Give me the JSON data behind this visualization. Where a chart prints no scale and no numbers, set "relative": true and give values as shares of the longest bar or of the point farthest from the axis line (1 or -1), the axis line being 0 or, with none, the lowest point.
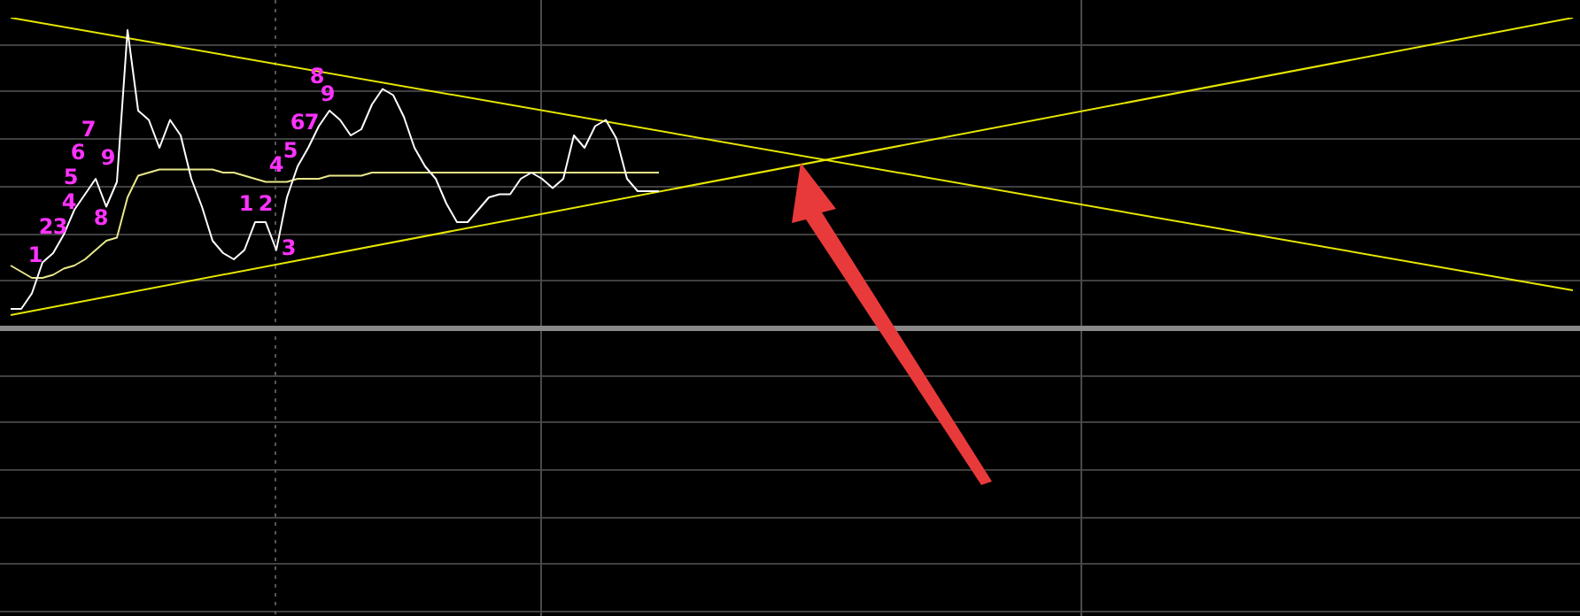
{
  "chart_data": {
    "type": "line",
    "relative": true,
    "legend": false,
    "grid": true,
    "marker": "none",
    "line_style": "solid",
    "categories": [
      null,
      null,
      null,
      null,
      null,
      null,
      null,
      null,
      null,
      null,
      null,
      null,
      null,
      null,
      null,
      null,
      null,
      null,
      null,
      null,
      null,
      null,
      null,
      null,
      null,
      null,
      null,
      null,
      null,
      null,
      null,
      null,
      null,
      null,
      null,
      null,
      null,
      null,
      null,
      null,
      null,
      null,
      null,
      null,
      null,
      null,
      null,
      null,
      null,
      null,
      null,
      null,
      null,
      null,
      null,
      null,
      null,
      null,
      null,
      null,
      null,
      null,
      null,
      null,
      null,
      null,
      null,
      null,
      null,
      null,
      null,
      null,
      null,
      null,
      null,
      null,
      null,
      null,
      null,
      null,
      null,
      null,
      null,
      null,
      null,
      null,
      null,
      null,
      null,
      null,
      null,
      null,
      null,
      null,
      null,
      null,
      null,
      null,
      null,
      null,
      null,
      null,
      null,
      null,
      null,
      null,
      null,
      null,
      null,
      null,
      null,
      null,
      null,
      null,
      null,
      null,
      null,
      null,
      null,
      null,
      null,
      null,
      null,
      null,
      null,
      null,
      null,
      null,
      null,
      null,
      null,
      null,
      null,
      null,
      null,
      null,
      null,
      null,
      null,
      null,
      null,
      null,
      null,
      null,
      null,
      null,
      null,
      null
    ],
    "series": [
      {
        "color": "#ffffff",
        "values": [
          0.06,
          0.06,
          0.11,
          0.21,
          0.24,
          0.3,
          0.38,
          0.43,
          0.48,
          0.39,
          0.47,
          0.96,
          0.7,
          0.67,
          0.58,
          0.67,
          0.62,
          0.48,
          0.39,
          0.28,
          0.24,
          0.22,
          0.25,
          0.34,
          0.34,
          0.25,
          0.42,
          0.52,
          0.58,
          0.65,
          0.7,
          0.67,
          0.62,
          0.64,
          0.72,
          0.77,
          0.75,
          0.68,
          0.58,
          0.52,
          0.48,
          0.4,
          0.34,
          0.34,
          0.38,
          0.42,
          0.43,
          0.43,
          0.48,
          0.5,
          0.48,
          0.45,
          0.48,
          0.62,
          0.58,
          0.65,
          0.67,
          0.61,
          0.48,
          0.44,
          0.44,
          0.44,
          null,
          null,
          null,
          null,
          null,
          null,
          null,
          null,
          null,
          null,
          null,
          null,
          null,
          null,
          null,
          null,
          null,
          null,
          null,
          null,
          null,
          null,
          null,
          null,
          null,
          null,
          null,
          null,
          null,
          null,
          null,
          null,
          null,
          null,
          null,
          null,
          null,
          null,
          null,
          null,
          null,
          null,
          null,
          null,
          null,
          null,
          null,
          null,
          null,
          null,
          null,
          null,
          null,
          null,
          null,
          null,
          null,
          null,
          null,
          null,
          null,
          null,
          null,
          null,
          null,
          null,
          null,
          null,
          null,
          null,
          null,
          null,
          null,
          null,
          null,
          null,
          null,
          null,
          null,
          null,
          null,
          null,
          null,
          null,
          null,
          null
        ]
      },
      {
        "color": "#e8e88a",
        "values": [
          0.2,
          0.18,
          0.16,
          0.16,
          0.17,
          0.19,
          0.2,
          0.22,
          0.25,
          0.28,
          0.29,
          0.42,
          0.49,
          0.5,
          0.51,
          0.51,
          0.51,
          0.51,
          0.51,
          0.51,
          0.5,
          0.5,
          0.49,
          0.48,
          0.47,
          0.47,
          0.47,
          0.48,
          0.48,
          0.48,
          0.49,
          0.49,
          0.49,
          0.49,
          0.5,
          0.5,
          0.5,
          0.5,
          0.5,
          0.5,
          0.5,
          0.5,
          0.5,
          0.5,
          0.5,
          0.5,
          0.5,
          0.5,
          0.5,
          0.5,
          0.5,
          0.5,
          0.5,
          0.5,
          0.5,
          0.5,
          0.5,
          0.5,
          0.5,
          0.5,
          0.5,
          0.5,
          null,
          null,
          null,
          null,
          null,
          null,
          null,
          null,
          null,
          null,
          null,
          null,
          null,
          null,
          null,
          null,
          null,
          null,
          null,
          null,
          null,
          null,
          null,
          null,
          null,
          null,
          null,
          null,
          null,
          null,
          null,
          null,
          null,
          null,
          null,
          null,
          null,
          null,
          null,
          null,
          null,
          null,
          null,
          null,
          null,
          null,
          null,
          null,
          null,
          null,
          null,
          null,
          null,
          null,
          null,
          null,
          null,
          null,
          null,
          null,
          null,
          null,
          null,
          null,
          null,
          null,
          null,
          null,
          null,
          null,
          null,
          null,
          null,
          null,
          null,
          null,
          null,
          null,
          null,
          null,
          null,
          null,
          null,
          null,
          null,
          null
        ]
      },
      {
        "color": "#e6e600",
        "values": [
          1.0,
          null,
          null,
          null,
          null,
          null,
          null,
          null,
          null,
          null,
          null,
          null,
          null,
          null,
          null,
          null,
          null,
          null,
          null,
          null,
          null,
          null,
          null,
          null,
          null,
          null,
          null,
          null,
          null,
          null,
          null,
          null,
          null,
          null,
          null,
          null,
          null,
          null,
          null,
          null,
          null,
          null,
          null,
          null,
          null,
          null,
          null,
          null,
          null,
          null,
          null,
          null,
          null,
          null,
          null,
          null,
          null,
          null,
          null,
          null,
          null,
          null,
          null,
          null,
          null,
          null,
          null,
          null,
          null,
          null,
          null,
          null,
          null,
          null,
          null,
          null,
          null,
          null,
          null,
          null,
          null,
          null,
          null,
          null,
          null,
          null,
          null,
          null,
          null,
          null,
          null,
          null,
          null,
          null,
          null,
          null,
          null,
          null,
          null,
          null,
          null,
          null,
          null,
          null,
          null,
          null,
          null,
          null,
          null,
          null,
          null,
          null,
          null,
          null,
          null,
          null,
          null,
          null,
          null,
          null,
          null,
          null,
          null,
          null,
          null,
          null,
          null,
          null,
          null,
          null,
          null,
          null,
          null,
          null,
          null,
          null,
          null,
          null,
          null,
          null,
          null,
          null,
          null,
          null,
          null,
          null,
          null,
          0.12
        ]
      },
      {
        "color": "#e6e600",
        "values": [
          0.04,
          null,
          null,
          null,
          null,
          null,
          null,
          null,
          null,
          null,
          null,
          null,
          null,
          null,
          null,
          null,
          null,
          null,
          null,
          null,
          null,
          null,
          null,
          null,
          null,
          null,
          null,
          null,
          null,
          null,
          null,
          null,
          null,
          null,
          null,
          null,
          null,
          null,
          null,
          null,
          null,
          null,
          null,
          null,
          null,
          null,
          null,
          null,
          null,
          null,
          null,
          null,
          null,
          null,
          null,
          null,
          null,
          null,
          null,
          null,
          null,
          null,
          null,
          null,
          null,
          null,
          null,
          null,
          null,
          null,
          null,
          null,
          null,
          null,
          null,
          null,
          null,
          null,
          null,
          null,
          null,
          null,
          null,
          null,
          null,
          null,
          null,
          null,
          null,
          null,
          null,
          null,
          null,
          null,
          null,
          null,
          null,
          null,
          null,
          null,
          null,
          null,
          null,
          null,
          null,
          null,
          null,
          null,
          null,
          null,
          null,
          null,
          null,
          null,
          null,
          null,
          null,
          null,
          null,
          null,
          null,
          null,
          null,
          null,
          null,
          null,
          null,
          null,
          null,
          null,
          null,
          null,
          null,
          null,
          null,
          null,
          null,
          null,
          null,
          null,
          null,
          null,
          null,
          null,
          null,
          null,
          null,
          1.0
        ]
      }
    ],
    "annotations": [
      "1",
      "2",
      "3",
      "4",
      "5",
      "6",
      "7",
      "8",
      "9",
      "1",
      "2",
      "3",
      "4",
      "5",
      "6",
      "7",
      "8",
      "9"
    ]
  }
}
